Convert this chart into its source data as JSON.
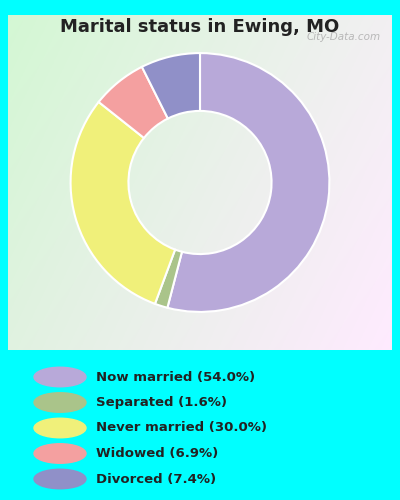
{
  "title": "Marital status in Ewing, MO",
  "title_fontsize": 13,
  "slices": [
    54.0,
    1.6,
    30.0,
    6.9,
    7.4
  ],
  "colors": [
    "#b8a9d9",
    "#aac48a",
    "#f0f07a",
    "#f4a0a0",
    "#9090c8"
  ],
  "labels": [
    "Now married (54.0%)",
    "Separated (1.6%)",
    "Never married (30.0%)",
    "Widowed (6.9%)",
    "Divorced (7.4%)"
  ],
  "legend_colors": [
    "#b8a9d9",
    "#aac48a",
    "#f0f07a",
    "#f4a0a0",
    "#9090c8"
  ],
  "bg_cyan": "#00FFFF",
  "watermark": "City-Data.com",
  "donut_width": 0.38,
  "startangle": 90
}
